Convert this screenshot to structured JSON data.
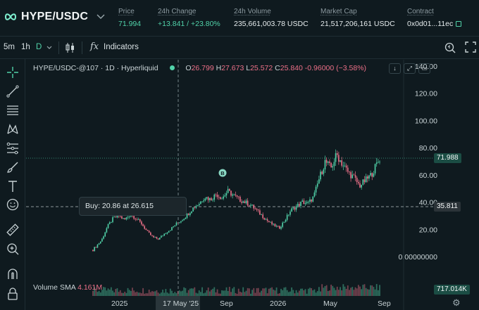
{
  "header": {
    "pair": "HYPE/USDC",
    "stats": [
      {
        "label": "Price",
        "value": "71.994",
        "green": true
      },
      {
        "label": "24h Change",
        "value": "+13.841 / +23.80%",
        "green": true
      },
      {
        "label": "24h Volume",
        "value": "235,661,003.78 USDC",
        "green": false
      },
      {
        "label": "Market Cap",
        "value": "21,517,206,161 USDC",
        "green": false
      },
      {
        "label": "Contract",
        "value": "0x0d01...11ec",
        "green": false
      }
    ]
  },
  "toolbar": {
    "intervals": [
      "5m",
      "1h",
      "D"
    ],
    "active_interval": "D",
    "indicators_label": "Indicators"
  },
  "legend": {
    "symbol": "HYPE/USDC-@107 · 1D · Hyperliquid",
    "o_key": "O",
    "o": "26.799",
    "h_key": "H",
    "h": "27.673",
    "l_key": "L",
    "l": "25.572",
    "c_key": "C",
    "c": "25.840",
    "change": "-0.96000 (−3.58%)"
  },
  "tooltip": "Buy: 20.86 at 26.615",
  "volume": {
    "label": "Volume",
    "sma": "SMA",
    "value": "4.161M"
  },
  "price_tags": {
    "last": "71.988",
    "buy_line": "35.811",
    "volume_last": "717.014K"
  },
  "markers": {
    "buy": "B"
  },
  "colors": {
    "up": "#51d2a9",
    "down": "#ed7088",
    "background": "#0f1a1f",
    "accent": "#51d2a9"
  },
  "chart_data": {
    "type": "candlestick",
    "x_labels": [
      "2025",
      "17 May '25",
      "Sep",
      "2026",
      "May",
      "Sep"
    ],
    "y_ticks": [
      "140.00",
      "120.00",
      "100.00",
      "80.00",
      "60.00",
      "40.00",
      "20.00",
      "0.00000000"
    ],
    "ylim": [
      0,
      140
    ],
    "series": [
      {
        "values": [
          [
            0,
            5
          ],
          [
            0.03,
            12
          ],
          [
            0.05,
            22
          ],
          [
            0.07,
            28
          ],
          [
            0.09,
            30
          ],
          [
            0.11,
            27
          ],
          [
            0.13,
            31
          ],
          [
            0.15,
            28
          ],
          [
            0.17,
            24
          ],
          [
            0.19,
            18
          ],
          [
            0.21,
            14
          ],
          [
            0.23,
            13
          ],
          [
            0.25,
            17
          ],
          [
            0.27,
            20
          ],
          [
            0.29,
            24
          ],
          [
            0.31,
            27
          ],
          [
            0.33,
            31
          ],
          [
            0.35,
            36
          ],
          [
            0.37,
            39
          ],
          [
            0.39,
            44
          ],
          [
            0.41,
            42
          ],
          [
            0.43,
            46
          ],
          [
            0.45,
            43
          ],
          [
            0.47,
            48
          ],
          [
            0.49,
            45
          ],
          [
            0.51,
            42
          ],
          [
            0.53,
            40
          ],
          [
            0.55,
            38
          ],
          [
            0.57,
            34
          ],
          [
            0.59,
            30
          ],
          [
            0.61,
            26
          ],
          [
            0.63,
            23
          ],
          [
            0.65,
            21
          ],
          [
            0.67,
            27
          ],
          [
            0.69,
            34
          ],
          [
            0.71,
            37
          ],
          [
            0.73,
            40
          ],
          [
            0.75,
            39
          ],
          [
            0.77,
            44
          ],
          [
            0.79,
            58
          ],
          [
            0.81,
            70
          ],
          [
            0.83,
            65
          ],
          [
            0.85,
            75
          ],
          [
            0.87,
            68
          ],
          [
            0.89,
            62
          ],
          [
            0.91,
            58
          ],
          [
            0.93,
            52
          ],
          [
            0.95,
            56
          ],
          [
            0.97,
            60
          ],
          [
            1.0,
            72
          ]
        ]
      }
    ]
  }
}
